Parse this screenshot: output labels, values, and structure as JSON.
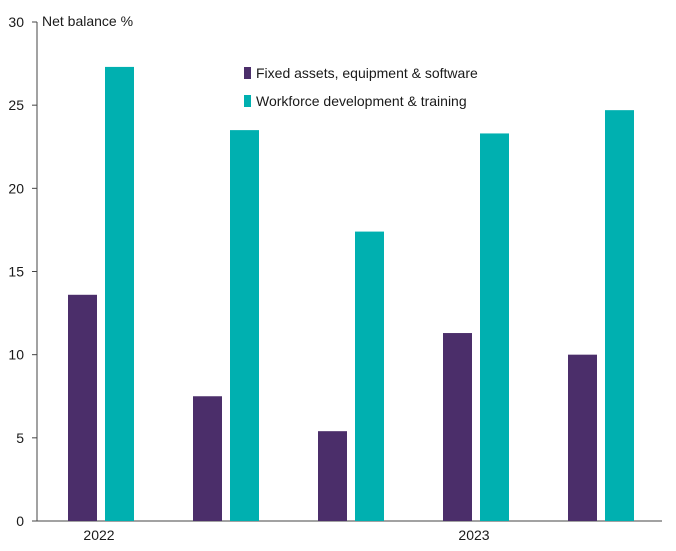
{
  "chart_data": {
    "type": "bar",
    "ylabel": "Net balance %",
    "ylim": [
      0,
      30
    ],
    "yticks": [
      0,
      5,
      10,
      15,
      20,
      25,
      30
    ],
    "grid": false,
    "legend_position": "top-center",
    "categories": [
      "2022",
      "",
      "",
      "2023",
      ""
    ],
    "series": [
      {
        "name": "Fixed assets, equipment & software",
        "color": "#4b2e6a",
        "values": [
          13.6,
          7.5,
          5.4,
          11.3,
          10.0
        ]
      },
      {
        "name": "Workforce development & training",
        "color": "#00b0b0",
        "values": [
          27.3,
          23.5,
          17.4,
          23.3,
          24.7
        ]
      }
    ],
    "x_tick_labels": [
      {
        "label": "2022",
        "category_index": 0
      },
      {
        "label": "2023",
        "category_index": 3
      }
    ]
  }
}
